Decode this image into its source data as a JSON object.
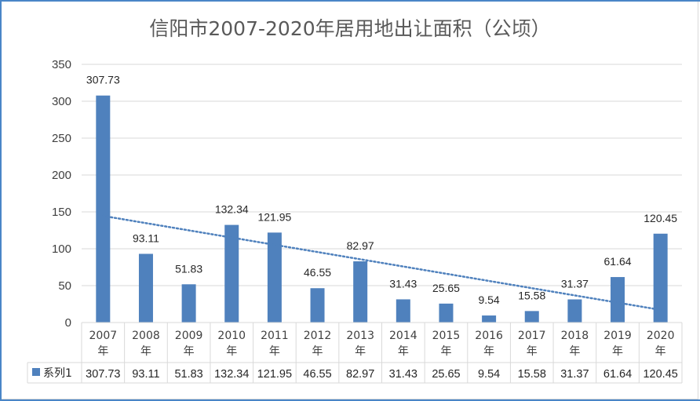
{
  "chart_data": {
    "type": "bar",
    "title": "信阳市2007-2020年居用地出让面积（公顷）",
    "categories": [
      "2007\n年",
      "2008\n年",
      "2009\n年",
      "2010\n年",
      "2011\n年",
      "2012\n年",
      "2013\n年",
      "2014\n年",
      "2015\n年",
      "2016\n年",
      "2017\n年",
      "2018\n年",
      "2019\n年",
      "2020\n年"
    ],
    "category_years": [
      "2007",
      "2008",
      "2009",
      "2010",
      "2011",
      "2012",
      "2013",
      "2014",
      "2015",
      "2016",
      "2017",
      "2018",
      "2019",
      "2020"
    ],
    "category_suffix": "年",
    "series": [
      {
        "name": "系列1",
        "values": [
          307.73,
          93.11,
          51.83,
          132.34,
          121.95,
          46.55,
          82.97,
          31.43,
          25.65,
          9.54,
          15.58,
          31.37,
          61.64,
          120.45
        ],
        "labels": [
          "307.73",
          "93.11",
          "51.83",
          "132.34",
          "121.95",
          "46.55",
          "82.97",
          "31.43",
          "25.65",
          "9.54",
          "15.58",
          "31.37",
          "61.64",
          "120.45"
        ],
        "color": "#4f81bd"
      }
    ],
    "trendline": {
      "type": "linear",
      "style": "dotted",
      "color": "#4f81bd"
    },
    "ylim": [
      0,
      350
    ],
    "yticks": [
      0,
      50,
      100,
      150,
      200,
      250,
      300,
      350
    ],
    "grid": true,
    "data_table": true,
    "legend_in_table": true
  }
}
